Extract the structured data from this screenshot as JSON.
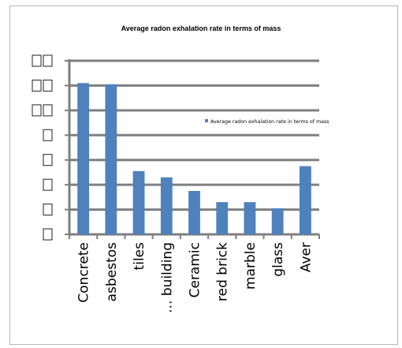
{
  "chart_data": {
    "type": "bar",
    "title": "Average radon exhalation rate in terms of mass",
    "categories": [
      "Concrete",
      "asbestos",
      "tiles",
      "... building",
      "Ceramic",
      "red brick",
      "marble",
      "glass",
      "Aver"
    ],
    "series": [
      {
        "name": "Average radon exhalation rate in terms of mass",
        "values": [
          6.1,
          6.05,
          2.55,
          2.3,
          1.75,
          1.3,
          1.3,
          1.05,
          2.75
        ]
      }
    ],
    "ylim": [
      0,
      7
    ],
    "yticks": 8,
    "grid": true,
    "legend": "right",
    "colors": {
      "bar": "#4f81bd",
      "grid": "#7f7f7f",
      "axis": "#7f7f7f"
    }
  }
}
